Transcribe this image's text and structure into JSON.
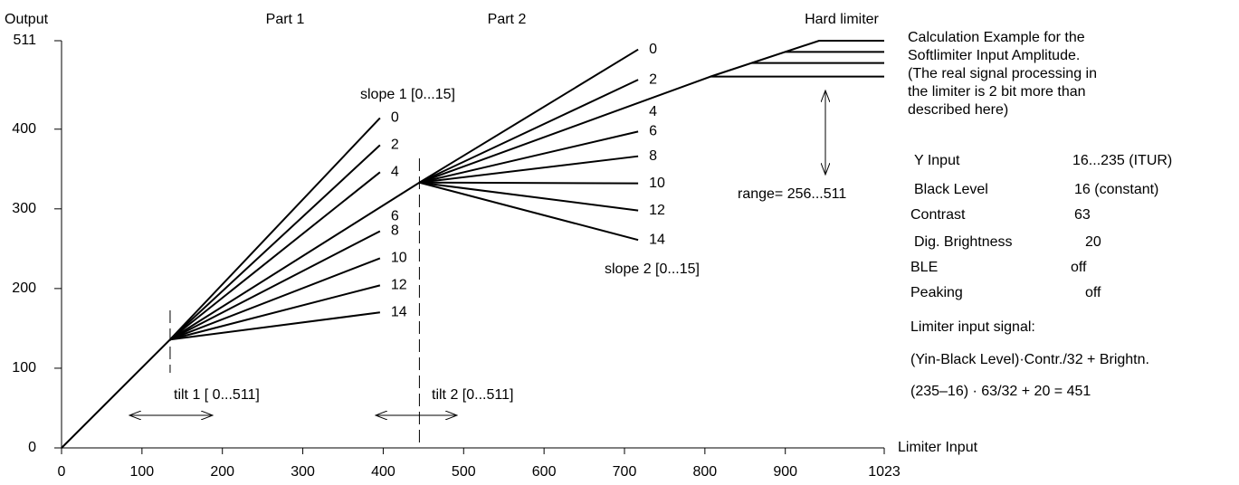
{
  "chart_data": {
    "type": "line",
    "x_label": "Limiter Input",
    "y_label": "Output",
    "xlim": [
      0,
      1023
    ],
    "ylim": [
      0,
      511
    ],
    "xticks": [
      0,
      100,
      200,
      300,
      400,
      500,
      600,
      700,
      800,
      900,
      1023
    ],
    "yticks": [
      0,
      100,
      200,
      300,
      400,
      511
    ],
    "color": "#000000",
    "annotations": {
      "part1": "Part 1",
      "part2": "Part 2",
      "hard_limiter": "Hard limiter",
      "slope1": "slope 1 [0...15]",
      "slope2": "slope 2 [0...15]",
      "tilt1": "tilt 1 [ 0...511]",
      "tilt2": "tilt 2 [0...511]",
      "range": "range= 256...511"
    },
    "series": [
      {
        "x": [
          0,
          135
        ],
        "values": [
          0,
          136
        ]
      },
      {
        "label": "0",
        "x": [
          135,
          396
        ],
        "values": [
          136,
          414
        ]
      },
      {
        "label": "2",
        "x": [
          135,
          396
        ],
        "values": [
          136,
          380
        ]
      },
      {
        "label": "4",
        "x": [
          135,
          396
        ],
        "values": [
          136,
          346
        ]
      },
      {
        "label": "6",
        "x": [
          135,
          445
        ],
        "values": [
          136,
          333
        ]
      },
      {
        "label": "8",
        "x": [
          135,
          396
        ],
        "values": [
          136,
          272
        ]
      },
      {
        "label": "10",
        "x": [
          135,
          396
        ],
        "values": [
          136,
          238
        ]
      },
      {
        "label": "12",
        "x": [
          135,
          396
        ],
        "values": [
          136,
          204
        ]
      },
      {
        "label": "14",
        "x": [
          135,
          396
        ],
        "values": [
          136,
          170
        ]
      },
      {
        "label": "0",
        "x": [
          445,
          717
        ],
        "values": [
          333,
          500
        ]
      },
      {
        "label": "2",
        "x": [
          445,
          717
        ],
        "values": [
          333,
          462
        ]
      },
      {
        "label": "4",
        "x": [
          445,
          807,
          1023
        ],
        "values": [
          333,
          466,
          466
        ]
      },
      {
        "label": "6",
        "x": [
          445,
          717
        ],
        "values": [
          333,
          397
        ]
      },
      {
        "label": "8",
        "x": [
          445,
          717
        ],
        "values": [
          333,
          366
        ]
      },
      {
        "label": "10",
        "x": [
          445,
          717
        ],
        "values": [
          333,
          332
        ]
      },
      {
        "label": "12",
        "x": [
          445,
          717
        ],
        "values": [
          333,
          298
        ]
      },
      {
        "label": "14",
        "x": [
          445,
          717
        ],
        "values": [
          333,
          261
        ]
      },
      {
        "x": [
          807,
          942,
          1023
        ],
        "values": [
          466,
          511,
          511
        ]
      },
      {
        "x": [
          858,
          1023
        ],
        "values": [
          483,
          483
        ]
      },
      {
        "x": [
          900,
          1023
        ],
        "values": [
          497,
          497
        ]
      }
    ]
  },
  "side_panel": {
    "intro": [
      "Calculation Example for the",
      "Softlimiter Input Amplitude.",
      "(The real signal processing in",
      "the limiter is 2 bit more than",
      "described here)"
    ],
    "settings": [
      [
        "Y Input",
        "16...235 (ITUR)"
      ],
      [
        "Black Level",
        "16 (constant)"
      ],
      [
        "Contrast",
        "63"
      ],
      [
        "Dig. Brightness",
        "20"
      ],
      [
        "BLE",
        "off"
      ],
      [
        "Peaking",
        "off"
      ]
    ],
    "signal_title": "Limiter input signal:",
    "formula": "(Yin-Black Level)·Contr./32 + Brightn.",
    "calculation": "(235–16) · 63/32 + 20 = 451"
  }
}
